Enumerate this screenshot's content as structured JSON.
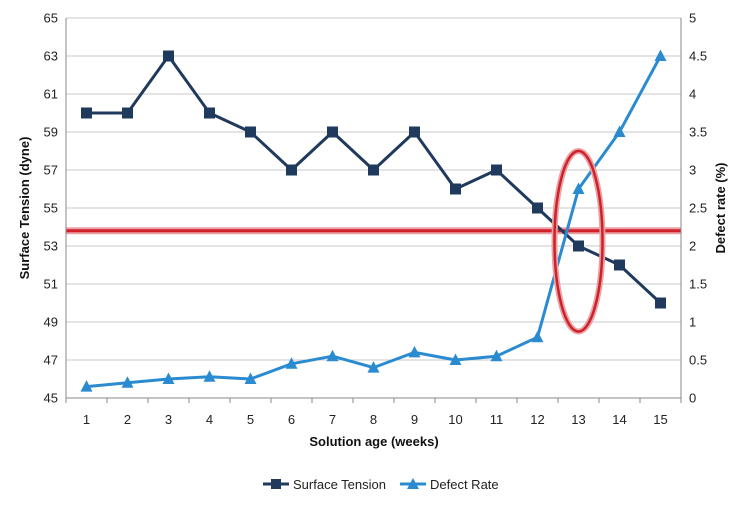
{
  "chart_data": {
    "type": "line",
    "xlabel": "Solution age (weeks)",
    "ylabel": "Surface Tension (dyne)",
    "y2label": "Defect rate (%)",
    "x": [
      1,
      2,
      3,
      4,
      5,
      6,
      7,
      8,
      9,
      10,
      11,
      12,
      13,
      14,
      15
    ],
    "x_ticks": [
      "1",
      "2",
      "3",
      "4",
      "5",
      "6",
      "7",
      "8",
      "9",
      "10",
      "11",
      "12",
      "13",
      "14",
      "15"
    ],
    "ylim": [
      45,
      65
    ],
    "y_ticks": [
      "45",
      "47",
      "49",
      "51",
      "53",
      "55",
      "57",
      "59",
      "61",
      "63",
      "65"
    ],
    "y2lim": [
      0,
      5
    ],
    "y2_ticks": [
      "0",
      "0.5",
      "1",
      "1.5",
      "2",
      "2.5",
      "3",
      "3.5",
      "4",
      "4.5",
      "5"
    ],
    "grid": "horizontal",
    "legend_position": "bottom",
    "series": [
      {
        "name": "Surface Tension",
        "axis": "left",
        "marker": "square",
        "color": "#1f3a5c",
        "values": [
          60,
          60,
          63,
          60,
          59,
          57,
          59,
          57,
          59,
          56,
          57,
          55,
          53,
          52,
          50
        ]
      },
      {
        "name": "Defect Rate",
        "axis": "right",
        "marker": "triangle",
        "color": "#2b8bd0",
        "values": [
          0.15,
          0.2,
          0.25,
          0.28,
          0.25,
          0.45,
          0.55,
          0.4,
          0.6,
          0.5,
          0.55,
          0.8,
          2.75,
          3.5,
          4.5
        ]
      }
    ],
    "annotations": {
      "threshold_line": {
        "axis": "left",
        "value": 53.8,
        "color": "#d0202a"
      },
      "highlight_ellipse": {
        "x": 13,
        "y_from": 48.5,
        "y_to": 58,
        "color": "#d0202a"
      }
    }
  }
}
